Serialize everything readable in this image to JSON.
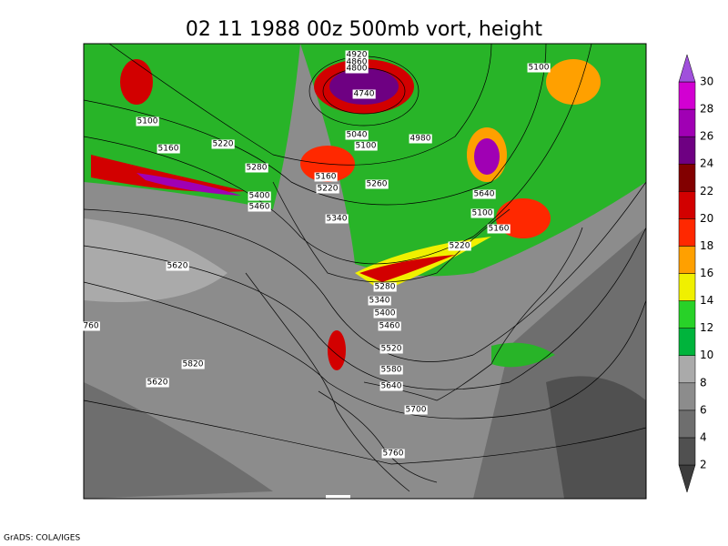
{
  "title": "02 11 1988 00z 500mb vort, height",
  "footer": "GrADS: COLA/IGES",
  "colorbar": {
    "levels": [
      2,
      4,
      6,
      8,
      10,
      12,
      14,
      16,
      18,
      20,
      22,
      24,
      26,
      28,
      30
    ],
    "colors": [
      "#3c3c3c",
      "#505050",
      "#6e6e6e",
      "#8c8c8c",
      "#aaaaaa",
      "#00b43c",
      "#28d228",
      "#f0f000",
      "#ffa000",
      "#ff2800",
      "#d20000",
      "#820000",
      "#6e0082",
      "#a000b4",
      "#d200d2",
      "#a050dc"
    ]
  },
  "contour_labels": [
    4920,
    4860,
    4800,
    4740,
    5100,
    5100,
    5160,
    5220,
    5280,
    5040,
    5100,
    4980,
    5160,
    5220,
    5260,
    5400,
    5460,
    5340,
    5640,
    5100,
    5160,
    5220,
    5620,
    5280,
    5340,
    5400,
    5460,
    5520,
    5580,
    5640,
    5700,
    5760,
    5820,
    5620,
    760
  ]
}
